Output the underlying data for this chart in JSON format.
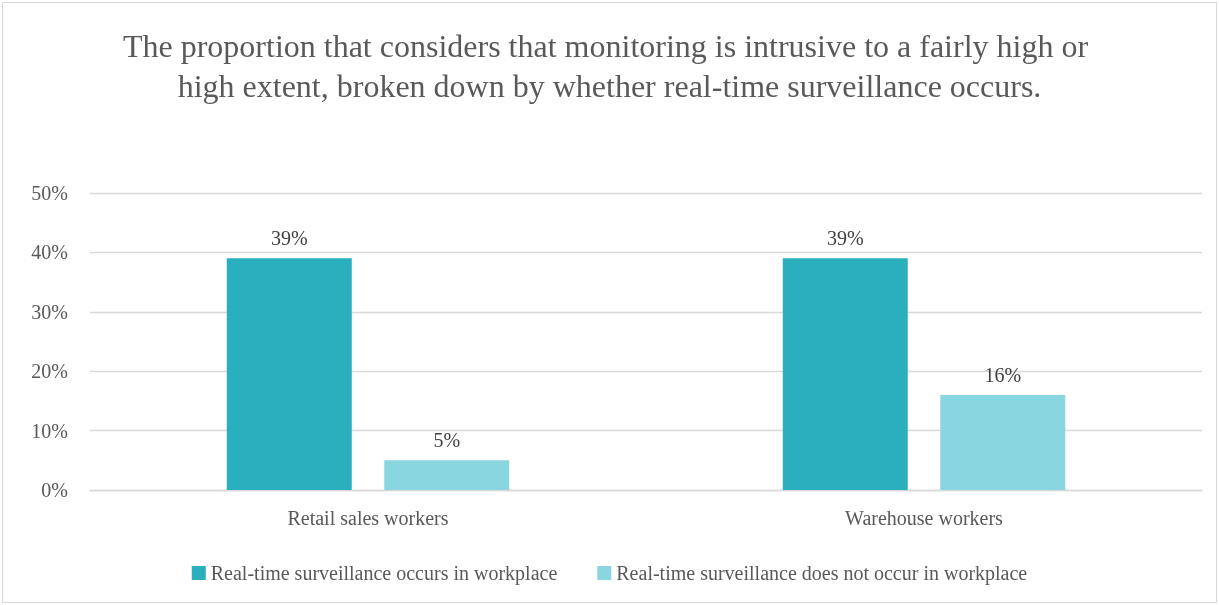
{
  "chart_data": {
    "type": "bar",
    "title": "The proportion that considers that monitoring is intrusive to a fairly high or high extent, broken down by whether real-time surveillance occurs.",
    "categories": [
      "Retail sales workers",
      "Warehouse workers"
    ],
    "series": [
      {
        "name": "Real-time surveillance occurs in workplace",
        "color": "#29afbe",
        "values": [
          39,
          39
        ],
        "value_labels": [
          "39%",
          "39%"
        ]
      },
      {
        "name": "Real-time surveillance does not occur in workplace",
        "color": "#8ad6e0",
        "values": [
          5,
          16
        ],
        "value_labels": [
          "5%",
          "16%"
        ]
      }
    ],
    "ylim": [
      0,
      50
    ],
    "yticks": [
      {
        "value": 0,
        "label": "0%"
      },
      {
        "value": 10,
        "label": "10%"
      },
      {
        "value": 20,
        "label": "20%"
      },
      {
        "value": 30,
        "label": "30%"
      },
      {
        "value": 40,
        "label": "40%"
      },
      {
        "value": 50,
        "label": "50%"
      }
    ],
    "grid": "y",
    "legend": "bottom"
  }
}
